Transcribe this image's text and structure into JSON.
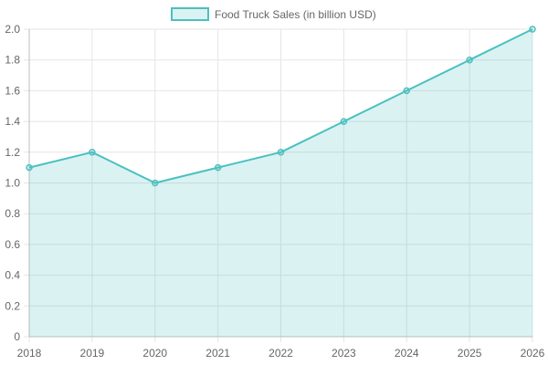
{
  "chart_data": {
    "type": "area",
    "x": [
      "2018",
      "2019",
      "2020",
      "2021",
      "2022",
      "2023",
      "2024",
      "2025",
      "2026"
    ],
    "series": [
      {
        "name": "Food Truck Sales (in billion USD)",
        "values": [
          1.1,
          1.2,
          1.0,
          1.1,
          1.2,
          1.4,
          1.6,
          1.8,
          2.0
        ],
        "color": "#4bc0c0",
        "fill": "rgba(75,192,192,0.2)"
      }
    ],
    "title": "",
    "xlabel": "",
    "ylabel": "",
    "ylim": [
      0,
      2.0
    ],
    "yticks": [
      "0",
      "0.2",
      "0.4",
      "0.6",
      "0.8",
      "1.0",
      "1.2",
      "1.4",
      "1.6",
      "1.8",
      "2.0"
    ],
    "grid": true,
    "legend": "top-center"
  }
}
